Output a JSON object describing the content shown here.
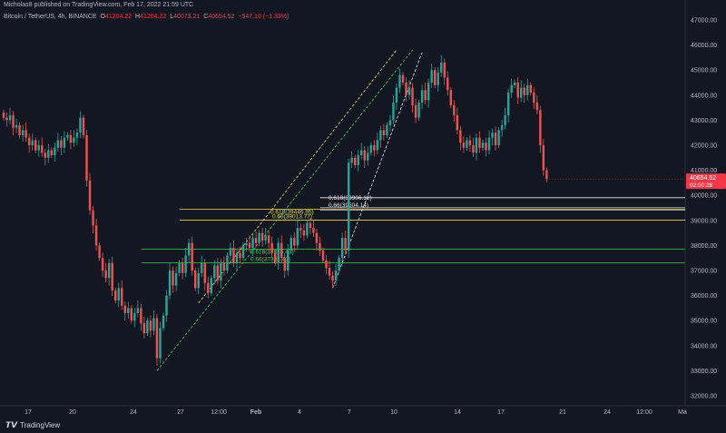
{
  "header": {
    "published": "Micholas8 published on TradingView.com, Feb 17, 2022 21:59 UTC",
    "symbol": "Bitcoin / TetherUS, 4h, BINANCE",
    "o_label": "O",
    "o": "41204.22",
    "h_label": "H",
    "h": "41204.22",
    "l_label": "L",
    "l": "40073.21",
    "c_label": "C",
    "c": "40654.52",
    "change": "−547.10 (−1.33%)"
  },
  "logo": {
    "icon": "tradingview-logo-icon",
    "text": "TradingView"
  },
  "price_tag": {
    "price": "40654.52",
    "countdown": "02:00:28",
    "color": "#f23645"
  },
  "colors": {
    "up": "#26a69a",
    "down": "#ef5350",
    "yellow": "#e6d94a",
    "green": "#3cd04a",
    "white": "#e8e8e8",
    "bg": "#131722"
  },
  "chart_data": {
    "type": "candlestick",
    "timeframe": "4h",
    "ylim": [
      31800,
      47400
    ],
    "y_ticks": [
      "47000.00",
      "46000.00",
      "45000.00",
      "44000.00",
      "43000.00",
      "42000.00",
      "41000.00",
      "40000.00",
      "39000.00",
      "38000.00",
      "37000.00",
      "36000.00",
      "35000.00",
      "34000.00",
      "33000.00",
      "32000.00"
    ],
    "x_ticks": [
      "17",
      "20",
      "24",
      "27",
      "12:00",
      "Feb",
      "4",
      "7",
      "10",
      "14",
      "17",
      "21",
      "24",
      "12:00",
      "Ma"
    ],
    "closes": [
      43100,
      43000,
      43200,
      42700,
      42800,
      42400,
      42600,
      42300,
      42000,
      42200,
      41800,
      42000,
      41700,
      41500,
      41800,
      41600,
      41900,
      42200,
      41900,
      42300,
      42400,
      42100,
      42300,
      42500,
      43100,
      42400,
      40600,
      39400,
      38800,
      38000,
      37500,
      37000,
      36700,
      37300,
      36200,
      35800,
      36300,
      35600,
      35300,
      35500,
      35000,
      35300,
      35500,
      34900,
      34500,
      35000,
      34600,
      35100,
      33500,
      34700,
      35200,
      36000,
      37000,
      36400,
      36900,
      37300,
      36900,
      37600,
      38100,
      37000,
      36300,
      36900,
      37300,
      36500,
      36100,
      36700,
      37200,
      36600,
      37300,
      37000,
      37600,
      37900,
      37300,
      37700,
      37500,
      38000,
      38100,
      37900,
      38300,
      38100,
      38500,
      38200,
      38400,
      38100,
      37700,
      37300,
      38100,
      37500,
      37000,
      37800,
      38300,
      38000,
      38700,
      38600,
      38400,
      38900,
      38700,
      38500,
      38100,
      37800,
      37400,
      37100,
      36800,
      36600,
      37000,
      37500,
      38300,
      37800,
      41300,
      41500,
      41200,
      41600,
      41800,
      41400,
      41700,
      42000,
      41800,
      42200,
      42600,
      42400,
      42800,
      43000,
      43700,
      44300,
      44800,
      44500,
      44000,
      44300,
      43600,
      43100,
      43700,
      44200,
      43800,
      44500,
      45000,
      44400,
      44900,
      45300,
      44700,
      44200,
      43600,
      43200,
      42600,
      42100,
      41900,
      42200,
      42000,
      41700,
      42300,
      41900,
      42100,
      41800,
      42300,
      42500,
      42000,
      42600,
      42800,
      43200,
      44100,
      44400,
      44500,
      43900,
      44300,
      44000,
      44400,
      44100,
      43700,
      43400,
      42000,
      41000,
      40654.52
    ],
    "horizontal_levels": [
      {
        "label": "0.618(39906.12)",
        "value": 39906.12,
        "color": "white"
      },
      {
        "label": "0.66(39504.14)",
        "value": 39504.14,
        "color": "white"
      },
      {
        "label": "0.618(39446.95)",
        "value": 39446.95,
        "color": "yellow"
      },
      {
        "label": "0.66(39013.77)",
        "value": 39013.77,
        "color": "yellow"
      },
      {
        "label": "0.618(37846.43)",
        "value": 37846.43,
        "color": "green"
      },
      {
        "label": "0.66(37304.47)",
        "value": 37304.47,
        "color": "green"
      }
    ],
    "trendlines": [
      {
        "style": "dashed",
        "color": "green",
        "from": [
          48,
          33000
        ],
        "to": [
          128,
          45800
        ]
      },
      {
        "style": "dashed",
        "color": "yellow",
        "from": [
          61,
          35700
        ],
        "to": [
          123,
          45800
        ]
      },
      {
        "style": "dashed",
        "color": "white",
        "from": [
          103,
          36300
        ],
        "to": [
          131,
          45700
        ]
      }
    ]
  }
}
